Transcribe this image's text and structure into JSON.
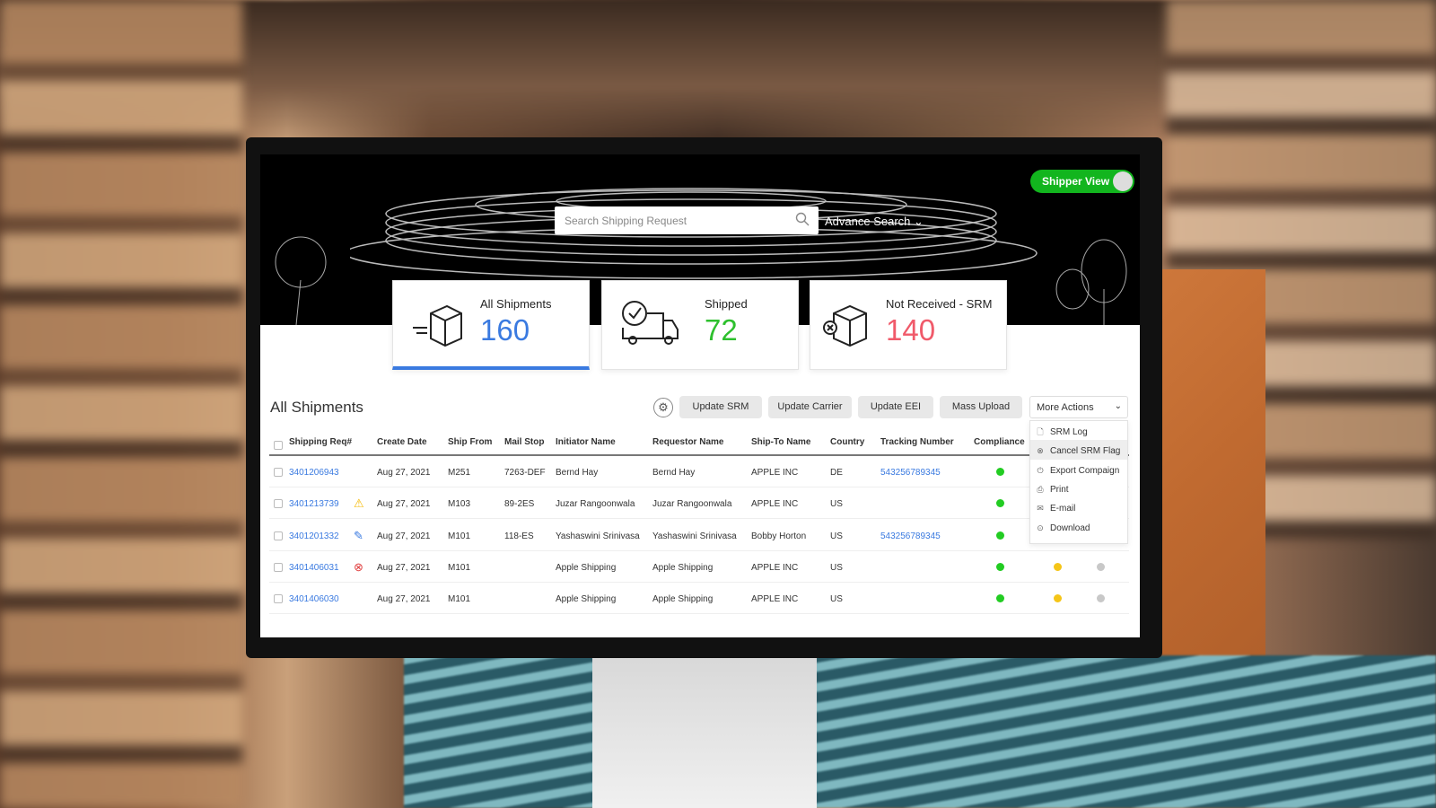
{
  "toggle": {
    "label": "Shipper View",
    "on": true
  },
  "search": {
    "placeholder": "Search Shipping Request",
    "advanced_label": "Advance Search"
  },
  "cards": [
    {
      "label": "All Shipments",
      "value": "160",
      "color": "#3a7ae0",
      "active": true
    },
    {
      "label": "Shipped",
      "value": "72",
      "color": "#2ec02e"
    },
    {
      "label": "Not Received - SRM",
      "value": "140",
      "color": "#f05a6a"
    }
  ],
  "section_title": "All Shipments",
  "toolbar": {
    "buttons": [
      "Update SRM",
      "Update Carrier",
      "Update EEI",
      "Mass Upload"
    ],
    "more_actions": "More Actions"
  },
  "menu": [
    {
      "label": "SRM Log",
      "icon": "document-icon"
    },
    {
      "label": "Cancel SRM Flag",
      "icon": "cancel-circle-icon",
      "highlighted": true
    },
    {
      "label": "Export Compaign",
      "icon": "export-icon"
    },
    {
      "label": "Print",
      "icon": "print-icon"
    },
    {
      "label": "E-mail",
      "icon": "mail-icon"
    },
    {
      "label": "Download",
      "icon": "download-icon"
    }
  ],
  "columns": [
    "Shipping Req#",
    "Create Date",
    "Ship From",
    "Mail Stop",
    "Initiator Name",
    "Requestor Name",
    "Ship-To Name",
    "Country",
    "Tracking Number",
    "Compliance"
  ],
  "rows": [
    {
      "req": "3401206943",
      "flag": "",
      "date": "Aug 27, 2021",
      "from": "M251",
      "mail": "7263-DEF",
      "initiator": "Bernd Hay",
      "requestor": "Bernd Hay",
      "shipto": "APPLE INC",
      "country": "DE",
      "tracking": "543256789345",
      "dots": [
        "#22cc22"
      ]
    },
    {
      "req": "3401213739",
      "flag": "warning",
      "date": "Aug 27, 2021",
      "from": "M103",
      "mail": "89-2ES",
      "initiator": "Juzar Rangoonwala",
      "requestor": "Juzar Rangoonwala",
      "shipto": "APPLE INC",
      "country": "US",
      "tracking": "",
      "dots": [
        "#22cc22"
      ]
    },
    {
      "req": "3401201332",
      "flag": "edit",
      "date": "Aug 27, 2021",
      "from": "M101",
      "mail": "118-ES",
      "initiator": "Yashaswini Srinivasa",
      "requestor": "Yashaswini Srinivasa",
      "shipto": "Bobby Horton",
      "country": "US",
      "tracking": "543256789345",
      "dots": [
        "#22cc22"
      ]
    },
    {
      "req": "3401406031",
      "flag": "error",
      "date": "Aug 27, 2021",
      "from": "M101",
      "mail": "",
      "initiator": "Apple Shipping",
      "requestor": "Apple Shipping",
      "shipto": "APPLE INC",
      "country": "US",
      "tracking": "",
      "dots": [
        "#22cc22",
        "#f5c518",
        "#c8c8c8"
      ]
    },
    {
      "req": "3401406030",
      "flag": "",
      "date": "Aug 27, 2021",
      "from": "M101",
      "mail": "",
      "initiator": "Apple Shipping",
      "requestor": "Apple Shipping",
      "shipto": "APPLE INC",
      "country": "US",
      "tracking": "",
      "dots": [
        "#22cc22",
        "#f5c518",
        "#c8c8c8"
      ]
    }
  ]
}
